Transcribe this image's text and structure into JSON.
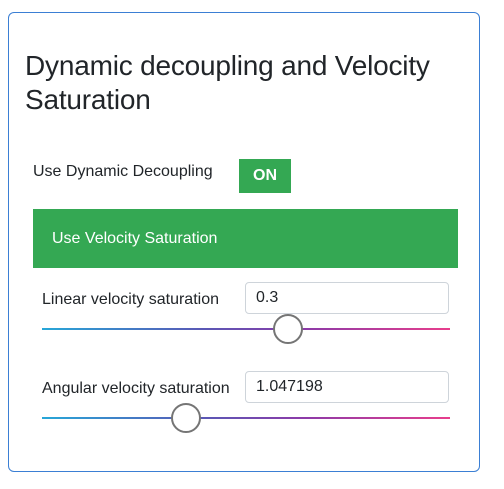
{
  "panel": {
    "title": "Dynamic decoupling and Velocity Saturation"
  },
  "dynamic_decoupling": {
    "label": "Use Dynamic Decoupling",
    "toggle_label": "ON",
    "toggle_color": "#34a853"
  },
  "velocity_saturation": {
    "label": "Use Velocity Saturation",
    "bar_color": "#34a853",
    "linear": {
      "label": "Linear velocity saturation",
      "value": "0.3",
      "slider_fraction": 0.6
    },
    "angular": {
      "label": "Angular velocity saturation",
      "value": "1.047198",
      "slider_fraction": 0.35
    }
  }
}
